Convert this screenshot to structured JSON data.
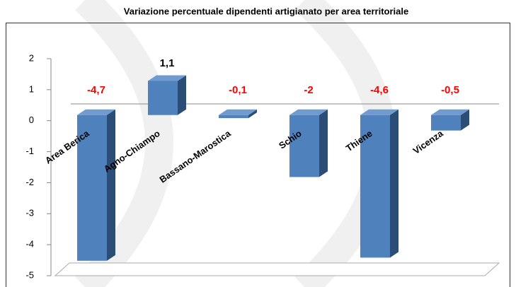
{
  "chart_data": {
    "type": "bar3d",
    "title": "Variazione percentuale dipendenti artigianato per area territoriale",
    "categories": [
      "Area Berica",
      "Agno-Chiampo",
      "Bassano-Marostica",
      "Schio",
      "Thiene",
      "Vicenza"
    ],
    "values": [
      -4.7,
      1.1,
      -0.1,
      -2,
      -4.6,
      -0.5
    ],
    "value_labels": [
      "-4,7",
      "1,1",
      "-0,1",
      "-2",
      "-4,6",
      "-0,5"
    ],
    "color": "#4f81bd",
    "label_color": "#000000",
    "negative_label_color": "#ff0000",
    "ylim": [
      -5,
      2
    ],
    "yticks": [
      -5,
      -4,
      -3,
      -2,
      -1,
      0,
      1,
      2
    ]
  }
}
